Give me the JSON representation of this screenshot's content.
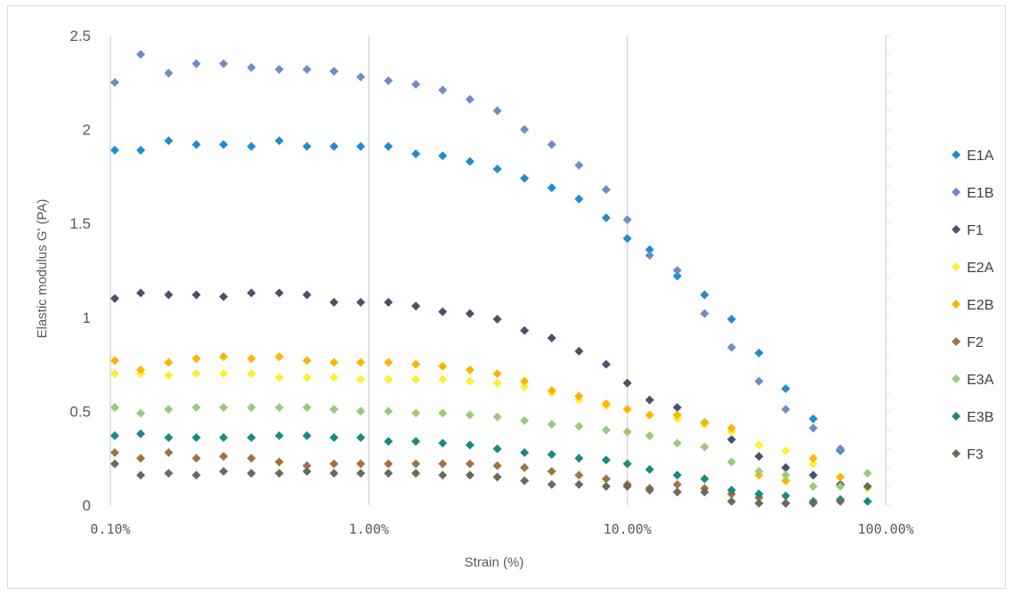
{
  "chart_data": {
    "type": "scatter",
    "title": "",
    "xlabel": "Strain (%)",
    "ylabel": "Elastic modulus G' (PA)",
    "xscale": "log",
    "xlim": [
      0.1,
      100
    ],
    "ylim": [
      0,
      2.5
    ],
    "x_ticks": [
      0.1,
      1,
      10,
      100
    ],
    "x_tick_labels": [
      "0.10%",
      "1.00%",
      "10.00%",
      "100.00%"
    ],
    "y_ticks": [
      0,
      0.5,
      1,
      1.5,
      2,
      2.5
    ],
    "y_tick_labels": [
      "0",
      "0.5",
      "1",
      "1.5",
      "2",
      "2.5"
    ],
    "grid": "vertical gridlines at major x ticks",
    "legend_position": "right",
    "series": [
      {
        "name": "E1A",
        "color": "#1f8bd2",
        "marker": "diamond",
        "x": [
          0.104,
          0.131,
          0.168,
          0.215,
          0.274,
          0.351,
          0.45,
          0.576,
          0.733,
          0.93,
          1.19,
          1.52,
          1.93,
          2.46,
          3.14,
          4.0,
          5.1,
          6.5,
          8.28,
          10.0,
          12.2,
          15.6,
          19.9,
          25.3,
          32.3,
          41.0,
          52.4,
          66.7
        ],
        "y": [
          1.89,
          1.89,
          1.94,
          1.92,
          1.92,
          1.91,
          1.94,
          1.91,
          1.91,
          1.91,
          1.91,
          1.87,
          1.86,
          1.83,
          1.79,
          1.74,
          1.69,
          1.63,
          1.53,
          1.42,
          1.36,
          1.22,
          1.12,
          0.99,
          0.81,
          0.62,
          0.46,
          0.29
        ]
      },
      {
        "name": "E1B",
        "color": "#6f8cc6",
        "marker": "diamond",
        "x": [
          0.104,
          0.131,
          0.168,
          0.215,
          0.274,
          0.351,
          0.45,
          0.576,
          0.733,
          0.93,
          1.19,
          1.52,
          1.93,
          2.46,
          3.14,
          4.0,
          5.1,
          6.5,
          8.28,
          10.0,
          12.2,
          15.6,
          19.9,
          25.3,
          32.3,
          41.0,
          52.4,
          66.7
        ],
        "y": [
          2.25,
          2.4,
          2.3,
          2.35,
          2.35,
          2.33,
          2.32,
          2.32,
          2.31,
          2.28,
          2.26,
          2.24,
          2.21,
          2.16,
          2.1,
          2.0,
          1.92,
          1.81,
          1.68,
          1.52,
          1.33,
          1.25,
          1.02,
          0.84,
          0.66,
          0.51,
          0.41,
          0.3
        ]
      },
      {
        "name": "F1",
        "color": "#44546a",
        "marker": "diamond",
        "x": [
          0.104,
          0.131,
          0.168,
          0.215,
          0.274,
          0.351,
          0.45,
          0.576,
          0.733,
          0.93,
          1.19,
          1.52,
          1.93,
          2.46,
          3.14,
          4.0,
          5.1,
          6.5,
          8.28,
          10.0,
          12.2,
          15.6,
          19.9,
          25.3,
          32.3,
          41.0,
          52.4,
          66.7
        ],
        "y": [
          1.1,
          1.13,
          1.12,
          1.12,
          1.11,
          1.13,
          1.13,
          1.12,
          1.08,
          1.08,
          1.08,
          1.06,
          1.03,
          1.02,
          0.99,
          0.93,
          0.89,
          0.82,
          0.75,
          0.65,
          0.56,
          0.52,
          0.44,
          0.35,
          0.26,
          0.2,
          0.16,
          0.11
        ]
      },
      {
        "name": "E2A",
        "color": "#ffee33",
        "marker": "diamond",
        "x": [
          0.104,
          0.131,
          0.168,
          0.215,
          0.274,
          0.351,
          0.45,
          0.576,
          0.733,
          0.93,
          1.19,
          1.52,
          1.93,
          2.46,
          3.14,
          4.0,
          5.1,
          6.5,
          8.28,
          10.0,
          12.2,
          15.6,
          19.9,
          25.3,
          32.3,
          41.0,
          52.4,
          66.7,
          85.0
        ],
        "y": [
          0.7,
          0.7,
          0.69,
          0.7,
          0.7,
          0.7,
          0.68,
          0.68,
          0.68,
          0.67,
          0.67,
          0.67,
          0.67,
          0.66,
          0.65,
          0.63,
          0.6,
          0.56,
          0.53,
          0.51,
          0.48,
          0.46,
          0.43,
          0.39,
          0.32,
          0.29,
          0.22,
          0.15,
          0.09
        ]
      },
      {
        "name": "E2B",
        "color": "#ffb300",
        "marker": "diamond",
        "x": [
          0.104,
          0.131,
          0.168,
          0.215,
          0.274,
          0.351,
          0.45,
          0.576,
          0.733,
          0.93,
          1.19,
          1.52,
          1.93,
          2.46,
          3.14,
          4.0,
          5.1,
          6.5,
          8.28,
          10.0,
          12.2,
          15.6,
          19.9,
          25.3,
          32.3,
          41.0,
          52.4,
          66.7
        ],
        "y": [
          0.77,
          0.72,
          0.76,
          0.78,
          0.79,
          0.78,
          0.79,
          0.77,
          0.76,
          0.76,
          0.76,
          0.75,
          0.74,
          0.72,
          0.7,
          0.66,
          0.61,
          0.58,
          0.54,
          0.51,
          0.48,
          0.48,
          0.44,
          0.41,
          0.16,
          0.13,
          0.25,
          0.15
        ]
      },
      {
        "name": "F2",
        "color": "#a6703f",
        "marker": "diamond",
        "x": [
          0.104,
          0.131,
          0.168,
          0.215,
          0.274,
          0.351,
          0.45,
          0.576,
          0.733,
          0.93,
          1.19,
          1.52,
          1.93,
          2.46,
          3.14,
          4.0,
          5.1,
          6.5,
          8.28,
          10.0,
          12.2,
          15.6,
          19.9,
          25.3,
          32.3,
          41.0
        ],
        "y": [
          0.28,
          0.25,
          0.28,
          0.25,
          0.26,
          0.25,
          0.23,
          0.21,
          0.22,
          0.22,
          0.22,
          0.22,
          0.22,
          0.22,
          0.21,
          0.2,
          0.18,
          0.16,
          0.14,
          0.11,
          0.09,
          0.11,
          0.09,
          0.06,
          0.04,
          0.01
        ]
      },
      {
        "name": "E3A",
        "color": "#9cc97a",
        "marker": "diamond",
        "x": [
          0.104,
          0.131,
          0.168,
          0.215,
          0.274,
          0.351,
          0.45,
          0.576,
          0.733,
          0.93,
          1.19,
          1.52,
          1.93,
          2.46,
          3.14,
          4.0,
          5.1,
          6.5,
          8.28,
          10.0,
          12.2,
          15.6,
          19.9,
          25.3,
          32.3,
          41.0,
          52.4,
          66.7,
          85.0
        ],
        "y": [
          0.52,
          0.49,
          0.51,
          0.52,
          0.52,
          0.52,
          0.52,
          0.52,
          0.51,
          0.5,
          0.5,
          0.49,
          0.49,
          0.48,
          0.47,
          0.45,
          0.43,
          0.42,
          0.4,
          0.39,
          0.37,
          0.33,
          0.31,
          0.23,
          0.18,
          0.16,
          0.1,
          0.1,
          0.17
        ]
      },
      {
        "name": "E3B",
        "color": "#1a8a80",
        "marker": "diamond",
        "x": [
          0.104,
          0.131,
          0.168,
          0.215,
          0.274,
          0.351,
          0.45,
          0.576,
          0.733,
          0.93,
          1.19,
          1.52,
          1.93,
          2.46,
          3.14,
          4.0,
          5.1,
          6.5,
          8.28,
          10.0,
          12.2,
          15.6,
          19.9,
          25.3,
          32.3,
          41.0,
          52.4,
          66.7,
          85.0
        ],
        "y": [
          0.37,
          0.38,
          0.36,
          0.36,
          0.36,
          0.36,
          0.37,
          0.37,
          0.36,
          0.36,
          0.34,
          0.34,
          0.33,
          0.32,
          0.3,
          0.28,
          0.27,
          0.25,
          0.24,
          0.22,
          0.19,
          0.16,
          0.14,
          0.08,
          0.06,
          0.05,
          0.02,
          0.03,
          0.02
        ]
      },
      {
        "name": "F3",
        "color": "#6b6b5a",
        "marker": "diamond",
        "x": [
          0.104,
          0.131,
          0.168,
          0.215,
          0.274,
          0.351,
          0.45,
          0.576,
          0.733,
          0.93,
          1.19,
          1.52,
          1.93,
          2.46,
          3.14,
          4.0,
          5.1,
          6.5,
          8.28,
          10.0,
          12.2,
          15.6,
          19.9,
          25.3,
          32.3,
          41.0,
          52.4,
          66.7,
          85.0
        ],
        "y": [
          0.22,
          0.16,
          0.17,
          0.16,
          0.18,
          0.17,
          0.17,
          0.18,
          0.17,
          0.17,
          0.17,
          0.17,
          0.16,
          0.16,
          0.15,
          0.13,
          0.11,
          0.11,
          0.1,
          0.1,
          0.08,
          0.07,
          0.07,
          0.02,
          0.01,
          0.01,
          0.01,
          0.02,
          0.1
        ]
      }
    ]
  }
}
